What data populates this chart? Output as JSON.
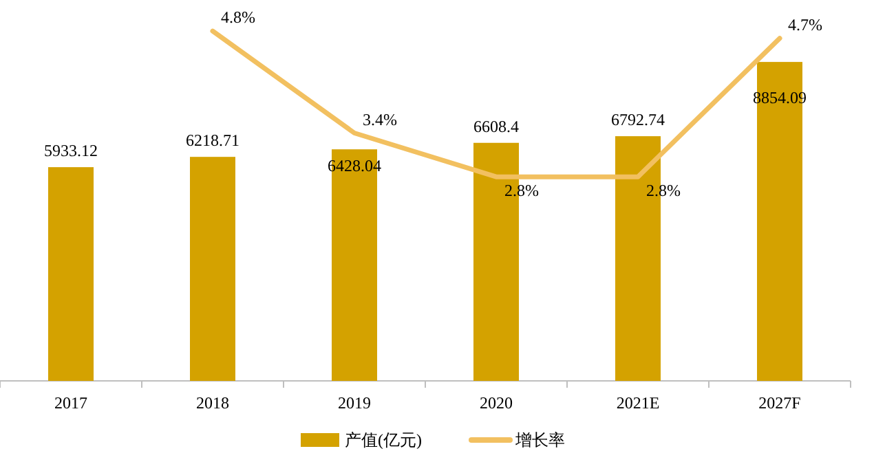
{
  "chart_data": {
    "type": "bar",
    "categories": [
      "2017",
      "2018",
      "2019",
      "2020",
      "2021E",
      "2027F"
    ],
    "series": [
      {
        "name": "产值(亿元)",
        "color": "#d4a200",
        "values": [
          5933.12,
          6218.71,
          6428.04,
          6608.4,
          6792.74,
          8854.09
        ],
        "value_labels": [
          "5933.12",
          "6218.71",
          "6428.04",
          "6608.4",
          "6792.74",
          "8854.09"
        ]
      },
      {
        "name": "增长率",
        "type": "line",
        "axis": "y2",
        "color": "#f2c060",
        "values": [
          null,
          4.8,
          3.4,
          2.8,
          2.8,
          4.7
        ],
        "value_labels": [
          null,
          "4.8%",
          "3.4%",
          "2.8%",
          "2.8%",
          "4.7%"
        ]
      }
    ],
    "legend": "bottom",
    "grid": false
  }
}
